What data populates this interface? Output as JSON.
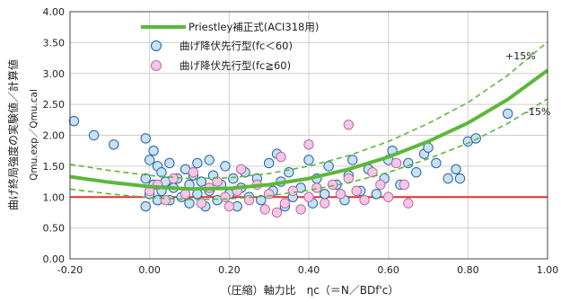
{
  "chart_data": {
    "type": "scatter",
    "xlabel": "（圧縮）軸力比　ηc（＝N／BDf'c）",
    "ylabel": "曲げ終局強度の実験値／計算値",
    "ylabel_sub": "Qmu.exp／Qmu.cal",
    "xlim": [
      -0.2,
      1.0
    ],
    "ylim": [
      0.0,
      4.0
    ],
    "x_ticks": [
      "-0.20",
      "0.00",
      "0.20",
      "0.40",
      "0.60",
      "0.80",
      "1.00"
    ],
    "y_ticks": [
      "0.00",
      "0.50",
      "1.00",
      "1.50",
      "2.00",
      "2.50",
      "3.00",
      "3.50",
      "4.00"
    ],
    "grid": true,
    "legend_position": "top-left",
    "reference_line": {
      "y": 1.0,
      "color": "#e03030"
    },
    "annotations": {
      "plus": "+15%",
      "minus": "-15%"
    },
    "series": [
      {
        "name": "Priestley補正式(ACI318用)",
        "kind": "curve",
        "color": "#5cb83a",
        "x": [
          -0.2,
          -0.1,
          0.0,
          0.1,
          0.2,
          0.3,
          0.4,
          0.5,
          0.6,
          0.7,
          0.8,
          0.9,
          1.0
        ],
        "values": [
          1.33,
          1.24,
          1.17,
          1.13,
          1.14,
          1.2,
          1.3,
          1.45,
          1.65,
          1.9,
          2.2,
          2.58,
          3.05
        ]
      },
      {
        "name": "+15%",
        "kind": "band",
        "color": "#5cb83a",
        "x": [
          -0.2,
          -0.1,
          0.0,
          0.1,
          0.2,
          0.3,
          0.4,
          0.5,
          0.6,
          0.7,
          0.8,
          0.9,
          1.0
        ],
        "values": [
          1.53,
          1.43,
          1.35,
          1.3,
          1.31,
          1.38,
          1.5,
          1.67,
          1.9,
          2.19,
          2.53,
          2.97,
          3.51
        ]
      },
      {
        "name": "-15%",
        "kind": "band",
        "color": "#5cb83a",
        "x": [
          -0.2,
          -0.1,
          0.0,
          0.1,
          0.2,
          0.3,
          0.4,
          0.5,
          0.6,
          0.7,
          0.8,
          0.9,
          1.0
        ],
        "values": [
          1.13,
          1.05,
          0.99,
          0.96,
          0.97,
          1.02,
          1.11,
          1.23,
          1.4,
          1.62,
          1.87,
          2.19,
          2.59
        ]
      },
      {
        "name": "曲げ降伏先行型(fc＜60)",
        "kind": "points",
        "fill": "#c6e2f7",
        "stroke": "#2b5f9e",
        "x": [
          -0.19,
          -0.14,
          -0.09,
          -0.01,
          -0.01,
          -0.01,
          0.0,
          0.0,
          0.01,
          0.01,
          0.02,
          0.02,
          0.03,
          0.03,
          0.04,
          0.05,
          0.05,
          0.06,
          0.07,
          0.08,
          0.09,
          0.1,
          0.1,
          0.11,
          0.12,
          0.12,
          0.13,
          0.14,
          0.15,
          0.15,
          0.16,
          0.17,
          0.18,
          0.19,
          0.2,
          0.21,
          0.22,
          0.23,
          0.24,
          0.25,
          0.27,
          0.28,
          0.3,
          0.31,
          0.32,
          0.33,
          0.34,
          0.35,
          0.36,
          0.38,
          0.4,
          0.41,
          0.42,
          0.44,
          0.45,
          0.47,
          0.49,
          0.5,
          0.51,
          0.53,
          0.55,
          0.57,
          0.59,
          0.6,
          0.61,
          0.63,
          0.65,
          0.67,
          0.69,
          0.7,
          0.72,
          0.75,
          0.77,
          0.78,
          0.8,
          0.82,
          0.9
        ],
        "values": [
          2.23,
          2.0,
          1.85,
          1.95,
          1.3,
          0.85,
          1.6,
          1.05,
          1.75,
          1.2,
          1.5,
          0.95,
          1.1,
          1.4,
          1.25,
          1.55,
          0.95,
          1.15,
          1.3,
          1.0,
          1.45,
          1.2,
          0.9,
          1.35,
          1.55,
          1.05,
          1.25,
          0.85,
          1.6,
          1.1,
          1.35,
          0.95,
          1.2,
          1.5,
          1.05,
          1.3,
          0.85,
          1.15,
          1.4,
          1.0,
          1.3,
          0.95,
          1.55,
          1.1,
          1.7,
          1.25,
          0.85,
          1.4,
          1.0,
          1.15,
          1.6,
          0.9,
          1.3,
          1.05,
          1.5,
          1.2,
          0.95,
          1.35,
          1.6,
          1.1,
          1.45,
          1.05,
          1.3,
          1.6,
          1.75,
          1.2,
          1.55,
          1.4,
          1.7,
          1.8,
          1.55,
          1.3,
          1.45,
          1.3,
          1.9,
          1.95,
          2.35
        ]
      },
      {
        "name": "曲げ降伏先行型(fc≧60)",
        "kind": "points",
        "fill": "#f6c6e8",
        "stroke": "#b0709a",
        "x": [
          0.0,
          0.02,
          0.04,
          0.06,
          0.09,
          0.11,
          0.13,
          0.15,
          0.17,
          0.19,
          0.2,
          0.22,
          0.25,
          0.27,
          0.29,
          0.3,
          0.32,
          0.34,
          0.36,
          0.38,
          0.4,
          0.42,
          0.44,
          0.46,
          0.48,
          0.5,
          0.52,
          0.54,
          0.56,
          0.58,
          0.6,
          0.62,
          0.64,
          0.65,
          0.5,
          0.4,
          0.33,
          0.23
        ],
        "values": [
          1.1,
          1.2,
          0.95,
          1.3,
          1.05,
          1.4,
          0.9,
          1.15,
          1.25,
          1.0,
          0.85,
          1.1,
          0.95,
          1.2,
          0.8,
          1.05,
          0.75,
          0.9,
          1.1,
          0.8,
          1.0,
          1.15,
          0.9,
          1.2,
          1.05,
          1.3,
          1.1,
          0.95,
          1.4,
          1.2,
          1.0,
          1.55,
          1.2,
          0.9,
          2.17,
          1.85,
          1.65,
          1.45
        ]
      }
    ]
  }
}
